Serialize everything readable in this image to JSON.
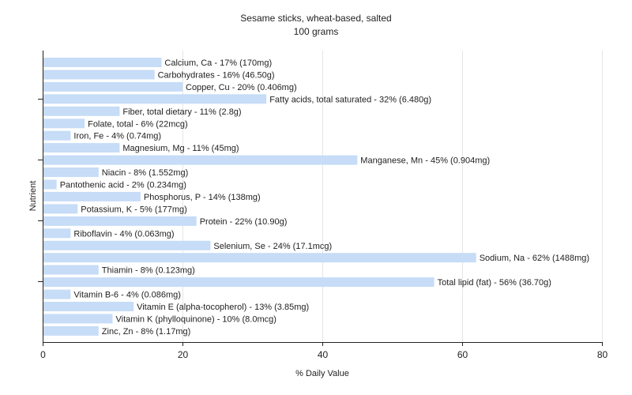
{
  "chart_data": {
    "type": "bar",
    "orientation": "horizontal",
    "title": "Sesame sticks, wheat-based, salted",
    "subtitle": "100 grams",
    "xlabel": "% Daily Value",
    "ylabel": "Nutrient",
    "xlim": [
      0,
      80
    ],
    "xticks": [
      0,
      20,
      40,
      60,
      80
    ],
    "grid": true,
    "bar_color": "#c6dcf7",
    "categories": [
      "Calcium, Ca",
      "Carbohydrates",
      "Copper, Cu",
      "Fatty acids, total saturated",
      "Fiber, total dietary",
      "Folate, total",
      "Iron, Fe",
      "Magnesium, Mg",
      "Manganese, Mn",
      "Niacin",
      "Pantothenic acid",
      "Phosphorus, P",
      "Potassium, K",
      "Protein",
      "Riboflavin",
      "Selenium, Se",
      "Sodium, Na",
      "Thiamin",
      "Total lipid (fat)",
      "Vitamin B-6",
      "Vitamin E (alpha-tocopherol)",
      "Vitamin K (phylloquinone)",
      "Zinc, Zn"
    ],
    "values": [
      17,
      16,
      20,
      32,
      11,
      6,
      4,
      11,
      45,
      8,
      2,
      14,
      5,
      22,
      4,
      24,
      62,
      8,
      56,
      4,
      13,
      10,
      8
    ],
    "labels": [
      "Calcium, Ca - 17% (170mg)",
      "Carbohydrates - 16% (46.50g)",
      "Copper, Cu - 20% (0.406mg)",
      "Fatty acids, total saturated - 32% (6.480g)",
      "Fiber, total dietary - 11% (2.8g)",
      "Folate, total - 6% (22mcg)",
      "Iron, Fe - 4% (0.74mg)",
      "Magnesium, Mg - 11% (45mg)",
      "Manganese, Mn - 45% (0.904mg)",
      "Niacin - 8% (1.552mg)",
      "Pantothenic acid - 2% (0.234mg)",
      "Phosphorus, P - 14% (138mg)",
      "Potassium, K - 5% (177mg)",
      "Protein - 22% (10.90g)",
      "Riboflavin - 4% (0.063mg)",
      "Selenium, Se - 24% (17.1mcg)",
      "Sodium, Na - 62% (1488mg)",
      "Thiamin - 8% (0.123mg)",
      "Total lipid (fat) - 56% (36.70g)",
      "Vitamin B-6 - 4% (0.086mg)",
      "Vitamin E (alpha-tocopherol) - 13% (3.85mg)",
      "Vitamin K (phylloquinone) - 10% (8.0mcg)",
      "Zinc, Zn - 8% (1.17mg)"
    ]
  }
}
